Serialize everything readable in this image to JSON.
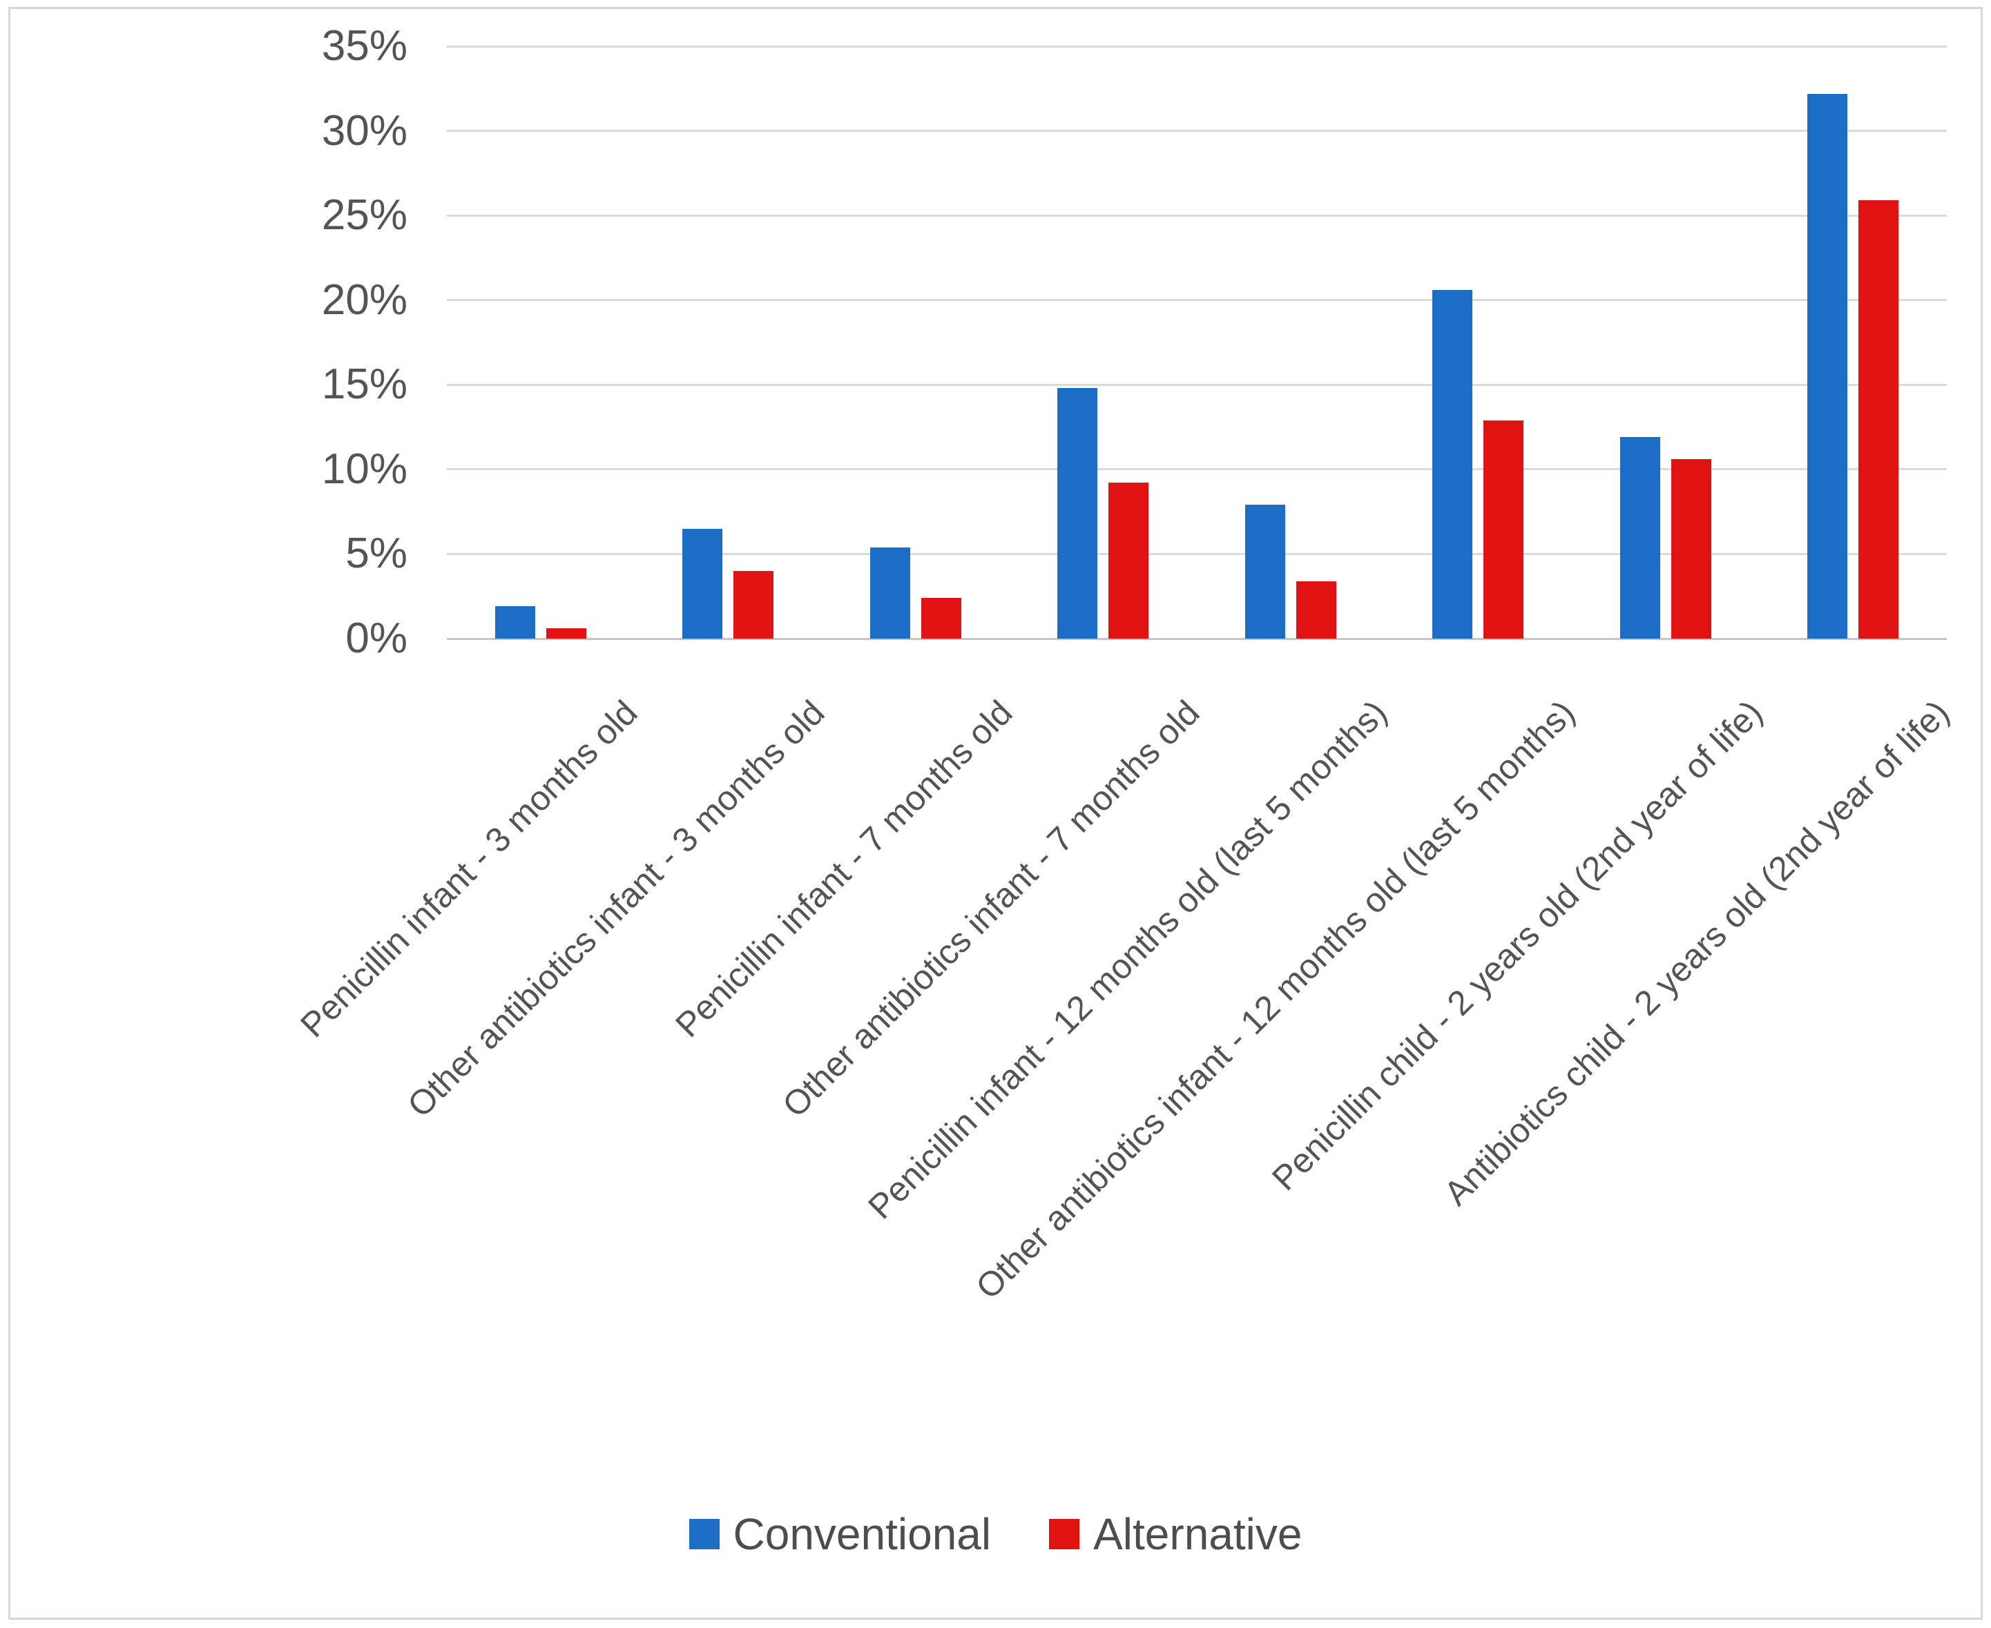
{
  "figure": {
    "background": "#ffffff",
    "frame_color": "#d8d8d8",
    "text_color": "#545454",
    "gridline_color": "#dadada",
    "axisline_color": "#c6c6c6"
  },
  "chart_data": {
    "type": "bar",
    "title": "",
    "xlabel": "",
    "ylabel": "",
    "categories": [
      "Penicillin infant - 3 months old",
      "Other antibiotics infant - 3 months old",
      "Penicillin infant - 7 months old",
      "Other antibiotics infant - 7 months old",
      "Penicillin infant - 12 months old (last 5 months)",
      "Other antibiotics infant - 12 months old (last 5 months)",
      "Penicillin child - 2 years old (2nd year of life)",
      "Antibiotics child - 2 years old (2nd year of life)"
    ],
    "series": [
      {
        "name": "Conventional",
        "color": "#1c6dc5",
        "values": [
          1.9,
          6.5,
          5.4,
          14.8,
          7.9,
          20.6,
          11.9,
          32.2
        ]
      },
      {
        "name": "Alternative",
        "color": "#e01212",
        "values": [
          0.6,
          4.0,
          2.4,
          9.2,
          3.4,
          12.9,
          10.6,
          25.9
        ]
      }
    ],
    "ylim": [
      0,
      35
    ],
    "ytick_step": 5,
    "ytick_labels": [
      "0%",
      "5%",
      "10%",
      "15%",
      "20%",
      "25%",
      "30%",
      "35%"
    ],
    "grid": true,
    "legend_position": "bottom"
  }
}
